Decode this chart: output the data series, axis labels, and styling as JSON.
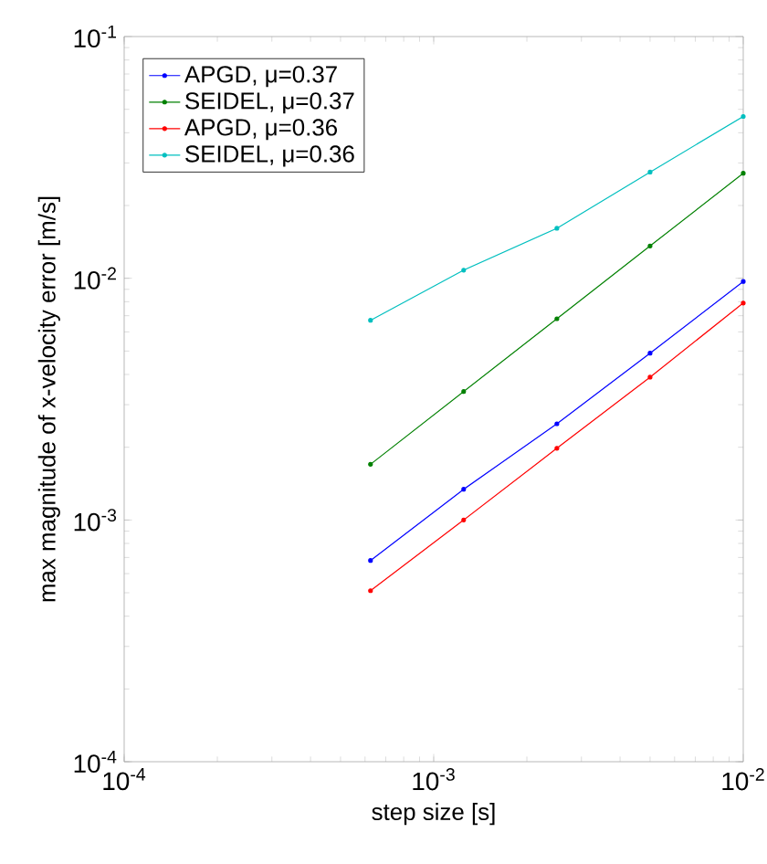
{
  "chart_data": {
    "type": "line",
    "log": "xy",
    "xlabel": "step size [s]",
    "ylabel": "max magnitude of x-velocity error [m/s]",
    "x": [
      0.000625,
      0.00125,
      0.0025,
      0.005,
      0.01
    ],
    "xlim": [
      0.0001,
      0.01
    ],
    "ylim": [
      0.0001,
      0.1
    ],
    "xticks": [
      {
        "value": 0.0001,
        "label": "10$^{-4}$"
      },
      {
        "value": 0.001,
        "label": "10$^{-3}$"
      },
      {
        "value": 0.01,
        "label": "10$^{-2}$"
      }
    ],
    "yticks": [
      {
        "value": 0.0001,
        "label": "10$^{-4}$"
      },
      {
        "value": 0.001,
        "label": "10$^{-3}$"
      },
      {
        "value": 0.01,
        "label": "10$^{-2}$"
      },
      {
        "value": 0.1,
        "label": "10$^{-1}$"
      }
    ],
    "legend": "top left",
    "marker": "circle",
    "line_style": "solid",
    "grid": false,
    "series": [
      {
        "name": "APGD, μ=0.37",
        "color": "#0000ff",
        "values": [
          0.00068,
          0.00134,
          0.0025,
          0.0049,
          0.0097
        ]
      },
      {
        "name": "SEIDEL, μ=0.37",
        "color": "#008000",
        "values": [
          0.0017,
          0.0034,
          0.0068,
          0.0136,
          0.0272
        ]
      },
      {
        "name": "APGD, μ=0.36",
        "color": "#ff0000",
        "values": [
          0.00051,
          0.001,
          0.00198,
          0.0039,
          0.0079
        ]
      },
      {
        "name": "SEIDEL, μ=0.36",
        "color": "#00bfbf",
        "values": [
          0.0067,
          0.0108,
          0.0161,
          0.0275,
          0.0467
        ]
      }
    ]
  }
}
